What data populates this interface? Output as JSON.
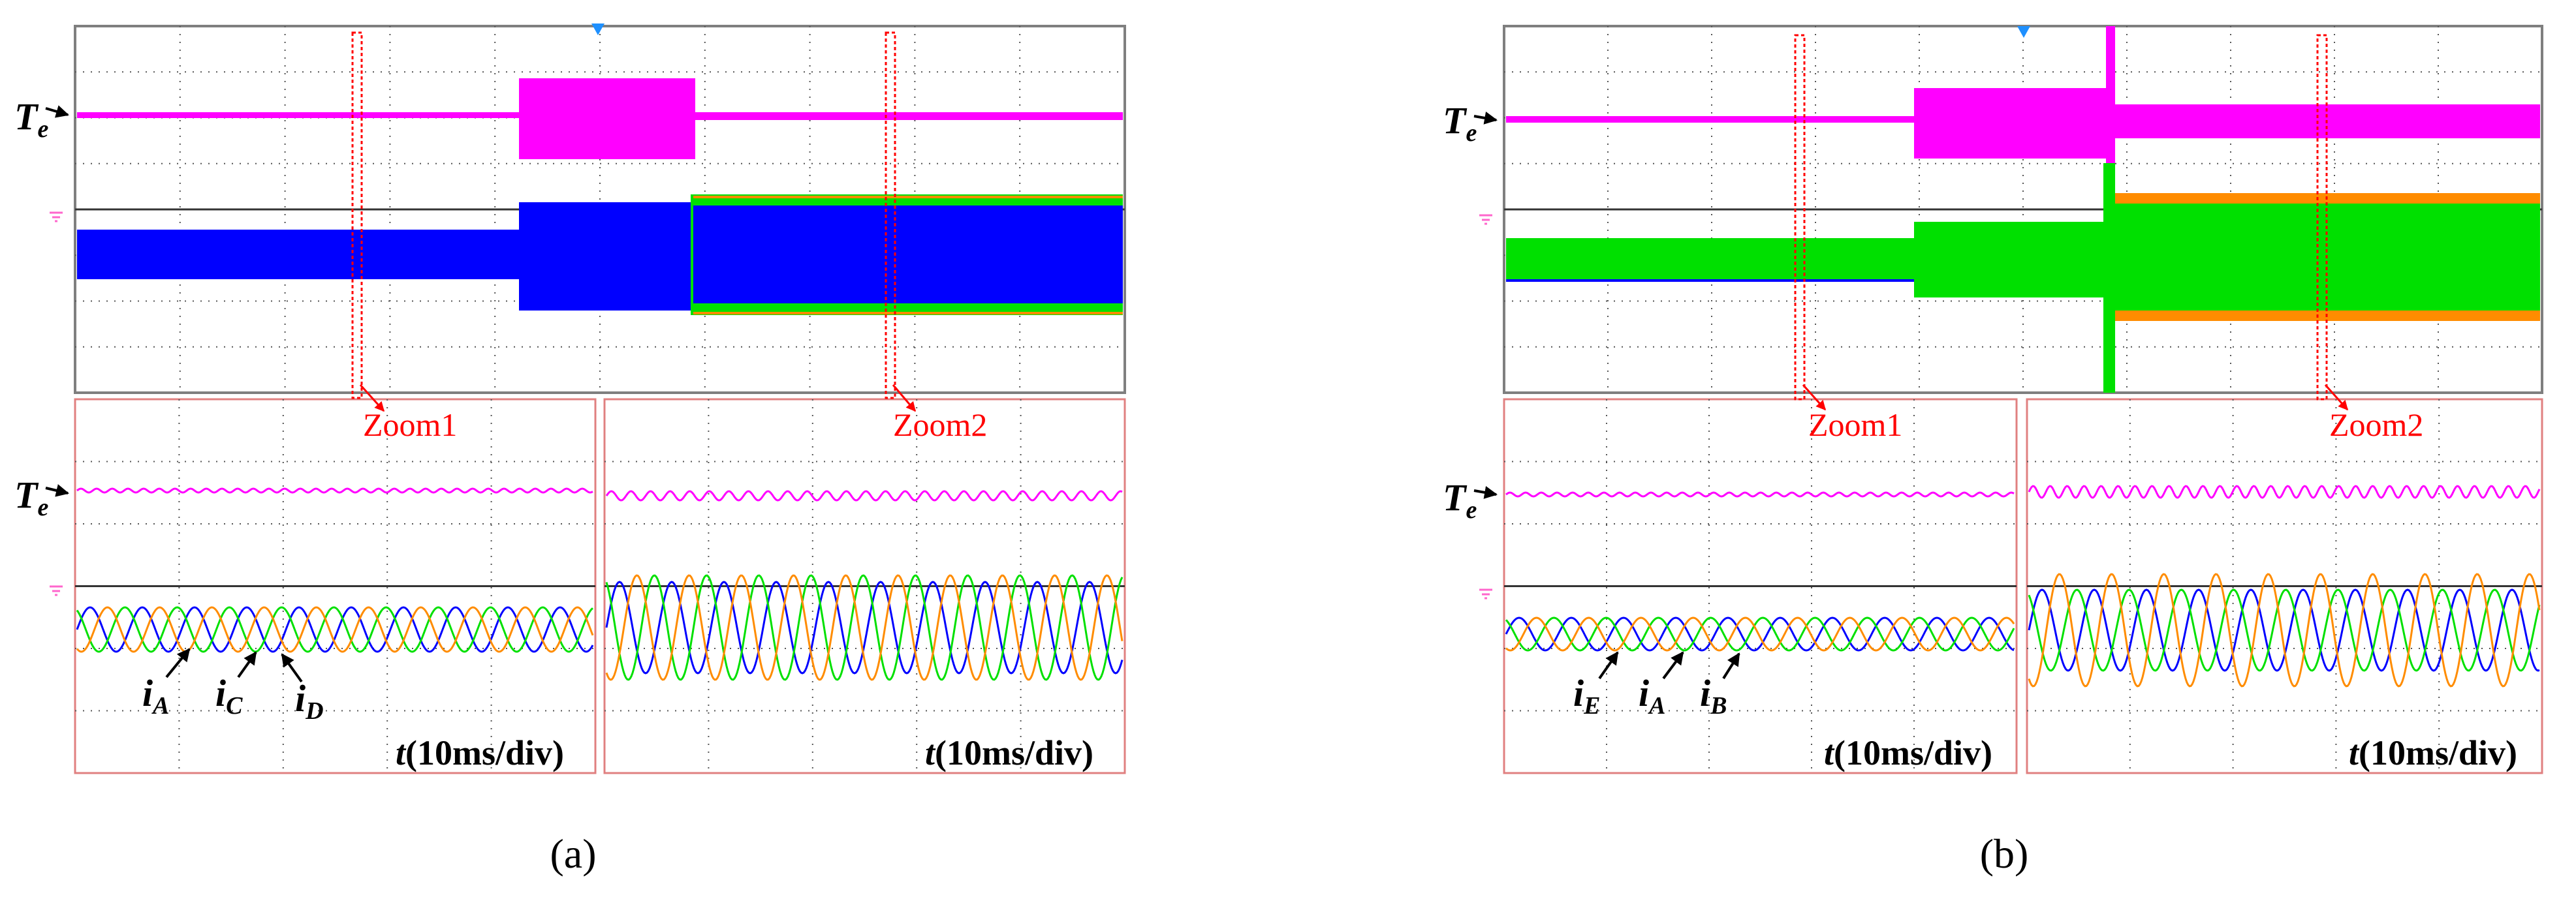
{
  "colors": {
    "torque": "#ff00ff",
    "blue": "#0000ff",
    "green": "#00e000",
    "orange": "#ff8c00",
    "red": "#ff0000",
    "arrow": "#000000"
  },
  "panels": [
    {
      "id": "a",
      "caption": "(a)",
      "zoom1_label": "Zoom1",
      "zoom2_label": "Zoom2",
      "y_channel_label": {
        "base": "T",
        "sub": "e"
      },
      "time_label": {
        "var": "t",
        "rest": "(10ms/div)"
      },
      "current_labels": [
        {
          "base": "i",
          "sub": "A"
        },
        {
          "base": "i",
          "sub": "C"
        },
        {
          "base": "i",
          "sub": "D"
        }
      ],
      "trace_colors": [
        "blue",
        "green",
        "orange"
      ]
    },
    {
      "id": "b",
      "caption": "(b)",
      "zoom1_label": "Zoom1",
      "zoom2_label": "Zoom2",
      "y_channel_label": {
        "base": "T",
        "sub": "e"
      },
      "time_label": {
        "var": "t",
        "rest": "(10ms/div)"
      },
      "current_labels": [
        {
          "base": "i",
          "sub": "E"
        },
        {
          "base": "i",
          "sub": "A"
        },
        {
          "base": "i",
          "sub": "B"
        }
      ],
      "trace_colors": [
        "blue",
        "green",
        "orange"
      ]
    }
  ],
  "chart_data": [
    {
      "type": "line",
      "panel": "a",
      "title": "",
      "xlabel": "t(10ms/div)",
      "series": [
        {
          "name": "Te"
        },
        {
          "name": "iA"
        },
        {
          "name": "iC"
        },
        {
          "name": "iD"
        }
      ],
      "annotations": [
        "Zoom1",
        "Zoom2"
      ],
      "grid": true
    },
    {
      "type": "line",
      "panel": "b",
      "title": "",
      "xlabel": "t(10ms/div)",
      "series": [
        {
          "name": "Te"
        },
        {
          "name": "iE"
        },
        {
          "name": "iA"
        },
        {
          "name": "iB"
        }
      ],
      "annotations": [
        "Zoom1",
        "Zoom2"
      ],
      "grid": true
    }
  ]
}
